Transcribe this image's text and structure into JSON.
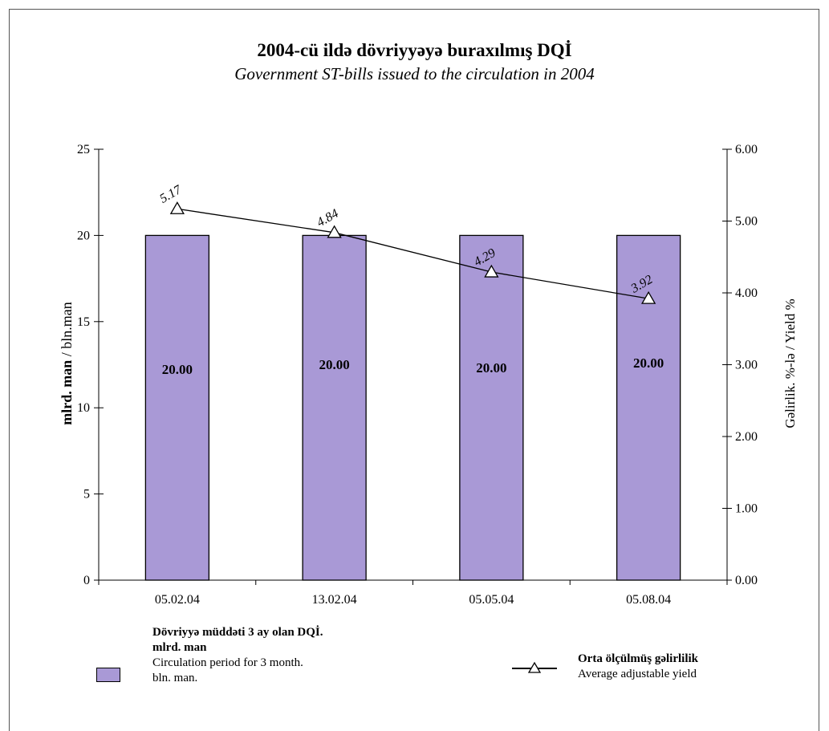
{
  "chart_data": {
    "type": "bar",
    "title": "2004-cü ildə dövriyyəyə buraxılmış DQİ",
    "subtitle": "Government ST-bills issued to the circulation in 2004",
    "categories": [
      "05.02.04",
      "13.02.04",
      "05.05.04",
      "05.08.04"
    ],
    "series": [
      {
        "name": "Dövriyyə müddəti 3 ay olan DQİ. mlrd. man / Circulation period for 3 month. bln. man.",
        "type": "bar",
        "axis": "left",
        "values": [
          20.0,
          20.0,
          20.0,
          20.0
        ],
        "labels": [
          "20.00",
          "20.00",
          "20.00",
          "20.00"
        ],
        "color": "#a999d6"
      },
      {
        "name": "Orta ölçülmüş gəlirlilik / Average adjustable yield",
        "type": "line",
        "axis": "right",
        "marker": "triangle",
        "values": [
          5.17,
          4.84,
          4.29,
          3.92
        ],
        "labels": [
          "5.17",
          "4.84",
          "4.29",
          "3.92"
        ],
        "color": "#000000"
      }
    ],
    "ylabel_left_bold": "mlrd. man",
    "ylabel_left_rest": " / bln.man",
    "ylabel_right": "Gəlirlik. %-lə / Yield %",
    "ylim_left": [
      0,
      25
    ],
    "yticks_left": [
      "0",
      "5",
      "10",
      "15",
      "20",
      "25"
    ],
    "ylim_right": [
      0,
      6
    ],
    "yticks_right": [
      "0.00",
      "1.00",
      "2.00",
      "3.00",
      "4.00",
      "5.00",
      "6.00"
    ],
    "grid": false,
    "legend_position": "bottom"
  },
  "legend": {
    "bar_title": "Dövriyyə müddəti 3 ay olan DQİ.",
    "bar_title2": "mlrd. man",
    "bar_sub1": "Circulation period for 3 month.",
    "bar_sub2": "bln. man.",
    "line_title": "Orta ölçülmüş gəlirlilik",
    "line_sub": "Average adjustable yield"
  }
}
